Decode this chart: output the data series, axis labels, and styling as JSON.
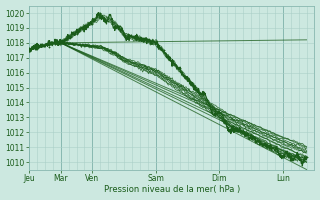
{
  "xlabel": "Pression niveau de la mer( hPa )",
  "bg_color": "#cce8e0",
  "grid_color_minor": "#aacfc8",
  "grid_color_major": "#88b8b0",
  "line_color": "#1a5c1a",
  "tick_label_color": "#1a5c1a",
  "ylim": [
    1009.5,
    1020.5
  ],
  "yticks": [
    1010,
    1011,
    1012,
    1013,
    1014,
    1015,
    1016,
    1017,
    1018,
    1019,
    1020
  ],
  "day_labels": [
    "Jeu",
    "Mar",
    "Ven",
    "Sam",
    "Dim",
    "Lun"
  ],
  "day_positions": [
    0,
    24,
    48,
    96,
    144,
    192
  ],
  "total_hours": 216,
  "figsize": [
    3.2,
    2.0
  ],
  "dpi": 100
}
